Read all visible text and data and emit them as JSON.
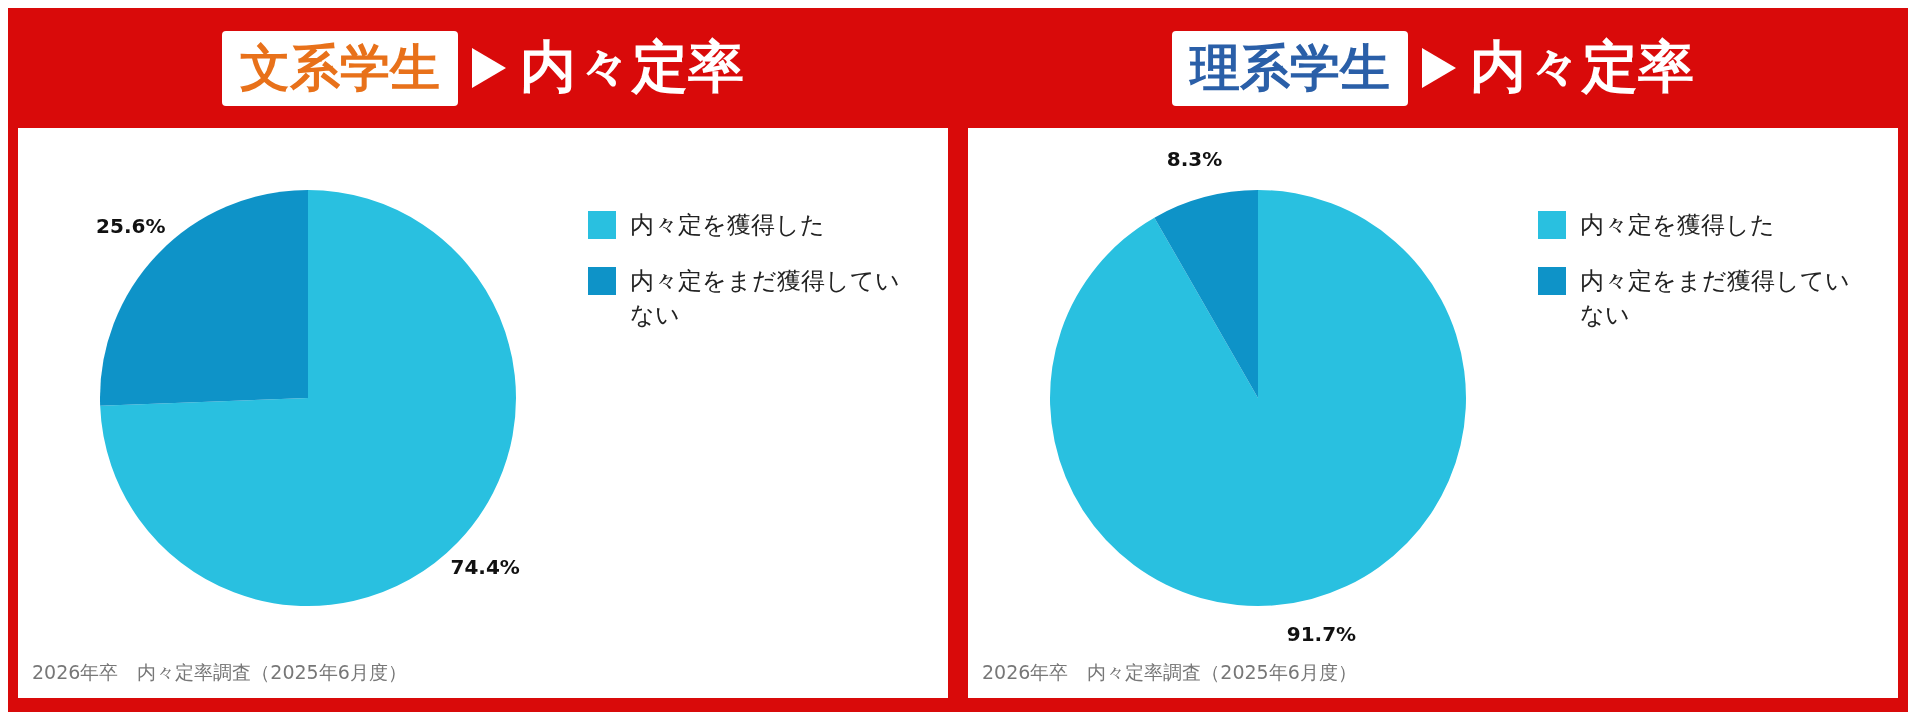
{
  "chart_data": [
    {
      "type": "pie",
      "title": "文系学生",
      "subtitle": "内々定率",
      "categories": [
        "内々定を獲得した",
        "内々定をまだ獲得していない"
      ],
      "values": [
        74.4,
        25.6
      ],
      "colors": [
        "#29c0e0",
        "#0e93c8"
      ],
      "value_labels": [
        "74.4%",
        "25.6%"
      ],
      "legend": "top right",
      "annotations": [
        "2026年卒　内々定率調査（2025年6月度）"
      ]
    },
    {
      "type": "pie",
      "title": "理系学生",
      "subtitle": "内々定率",
      "categories": [
        "内々定を獲得した",
        "内々定をまだ獲得していない"
      ],
      "values": [
        91.7,
        8.3
      ],
      "colors": [
        "#29c0e0",
        "#0e93c8"
      ],
      "value_labels": [
        "91.7%",
        "8.3%"
      ],
      "legend": "top right",
      "annotations": [
        "2026年卒　内々定率調査（2025年6月度）"
      ]
    }
  ]
}
